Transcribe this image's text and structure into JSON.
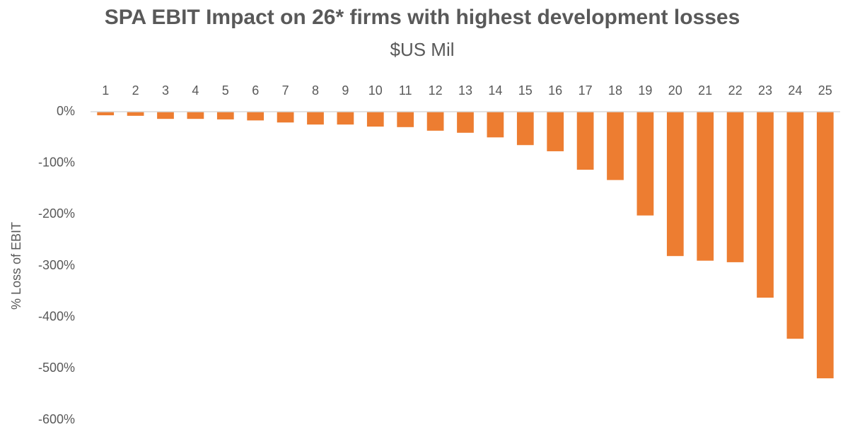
{
  "chart_data": {
    "type": "bar",
    "title": "SPA EBIT Impact on 26* firms with highest development losses",
    "subtitle": "$US Mil",
    "y_label": "% Loss of EBIT",
    "categories": [
      "1",
      "2",
      "3",
      "4",
      "5",
      "6",
      "7",
      "8",
      "9",
      "10",
      "11",
      "12",
      "13",
      "14",
      "15",
      "16",
      "17",
      "18",
      "19",
      "20",
      "21",
      "22",
      "23",
      "24",
      "25"
    ],
    "values": [
      -7,
      -8,
      -14,
      -14,
      -15,
      -17,
      -21,
      -25,
      -25,
      -29,
      -30,
      -37,
      -41,
      -50,
      -65,
      -77,
      -113,
      -133,
      -202,
      -281,
      -290,
      -293,
      -362,
      -442,
      -519
    ],
    "color": "#ed7d31",
    "ylim": [
      -600,
      0
    ],
    "yticks": [
      {
        "value": 0,
        "label": "0%"
      },
      {
        "value": -100,
        "label": "-100%"
      },
      {
        "value": -200,
        "label": "-200%"
      },
      {
        "value": -300,
        "label": "-300%"
      },
      {
        "value": -400,
        "label": "-400%"
      },
      {
        "value": -500,
        "label": "-500%"
      },
      {
        "value": -600,
        "label": "-600%"
      }
    ],
    "grid": false
  }
}
